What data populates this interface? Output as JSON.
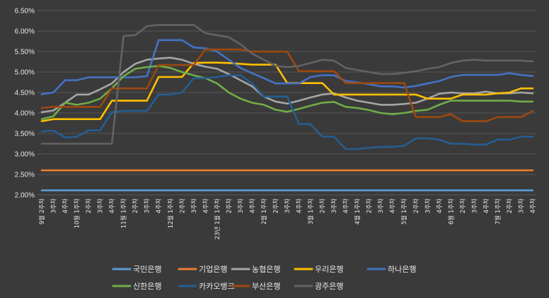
{
  "chart_data": {
    "type": "line",
    "title": "",
    "xlabel": "",
    "ylabel": "",
    "ylim": [
      2.0,
      6.5
    ],
    "y_ticks": [
      "2.00%",
      "2.50%",
      "3.00%",
      "3.50%",
      "4.00%",
      "4.50%",
      "5.00%",
      "5.50%",
      "6.00%",
      "6.50%"
    ],
    "grid": "horizontal",
    "legend_position": "bottom",
    "background": "#3a3a3a",
    "x": [
      "9월 2주차",
      "3주차",
      "4주차",
      "10월 1주차",
      "2주차",
      "3주차",
      "4주차",
      "11월 1주차",
      "2주차",
      "3주차",
      "4주차",
      "12월 1주차",
      "2주차",
      "3주차",
      "4주차",
      "23년 1월 1주차",
      "2주차",
      "3주차",
      "4주차",
      "2월 1주차",
      "2주차",
      "3주차",
      "4주차",
      "3월 1주차",
      "2주차",
      "3주차",
      "4주차",
      "4월 1주차",
      "2주차",
      "3주차",
      "4주차",
      "5월 1주차",
      "2주차",
      "3주차",
      "4주차",
      "6월 1주차",
      "2주차",
      "3주차",
      "4주차",
      "7월 1주차",
      "2주차",
      "3주차",
      "4주차"
    ],
    "series": [
      {
        "name": "국민은행",
        "color": "#5b9bd5",
        "values": [
          2.11,
          2.11,
          2.11,
          2.11,
          2.11,
          2.11,
          2.11,
          2.11,
          2.11,
          2.11,
          2.11,
          2.11,
          2.11,
          2.11,
          2.11,
          2.11,
          2.11,
          2.11,
          2.11,
          2.11,
          2.11,
          2.11,
          2.11,
          2.11,
          2.11,
          2.11,
          2.11,
          2.11,
          2.11,
          2.11,
          2.11,
          2.11,
          2.11,
          2.11,
          2.11,
          2.11,
          2.11,
          2.11,
          2.11,
          2.11,
          2.11,
          2.11,
          2.11
        ]
      },
      {
        "name": "기업은행",
        "color": "#ed7d31",
        "values": [
          2.6,
          2.6,
          2.6,
          2.6,
          2.6,
          2.6,
          2.6,
          2.6,
          2.6,
          2.6,
          2.6,
          2.6,
          2.6,
          2.6,
          2.6,
          2.6,
          2.6,
          2.6,
          2.6,
          2.6,
          2.6,
          2.6,
          2.6,
          2.6,
          2.6,
          2.6,
          2.6,
          2.6,
          2.6,
          2.6,
          2.6,
          2.6,
          2.6,
          2.6,
          2.6,
          2.6,
          2.6,
          2.6,
          2.6,
          2.6,
          2.6,
          2.6,
          2.6
        ]
      },
      {
        "name": "농협은행",
        "color": "#a5a5a5",
        "values": [
          4.02,
          4.06,
          4.25,
          4.45,
          4.45,
          4.58,
          4.72,
          5.0,
          5.2,
          5.3,
          5.33,
          5.35,
          5.3,
          5.2,
          5.13,
          5.08,
          4.95,
          4.8,
          4.65,
          4.4,
          4.28,
          4.23,
          4.3,
          4.38,
          4.45,
          4.48,
          4.38,
          4.3,
          4.25,
          4.2,
          4.2,
          4.22,
          4.25,
          4.35,
          4.47,
          4.5,
          4.48,
          4.48,
          4.52,
          4.48,
          4.48,
          4.5,
          4.48
        ]
      },
      {
        "name": "우리은행",
        "color": "#ffc000",
        "values": [
          3.8,
          3.85,
          3.85,
          3.85,
          3.85,
          3.85,
          4.3,
          4.3,
          4.3,
          4.3,
          4.88,
          4.88,
          4.88,
          5.22,
          5.23,
          5.23,
          5.22,
          5.2,
          5.18,
          5.18,
          5.18,
          4.73,
          4.73,
          4.73,
          4.73,
          4.45,
          4.45,
          4.45,
          4.45,
          4.45,
          4.45,
          4.45,
          4.45,
          4.35,
          4.35,
          4.35,
          4.45,
          4.45,
          4.45,
          4.48,
          4.5,
          4.6,
          4.6
        ]
      },
      {
        "name": "하나은행",
        "color": "#4472c4",
        "values": [
          4.46,
          4.5,
          4.8,
          4.8,
          4.87,
          4.87,
          4.87,
          4.87,
          4.87,
          4.9,
          5.78,
          5.78,
          5.78,
          5.6,
          5.58,
          5.5,
          5.3,
          5.1,
          4.97,
          4.85,
          4.72,
          4.72,
          4.72,
          4.88,
          4.92,
          4.92,
          4.78,
          4.75,
          4.7,
          4.65,
          4.65,
          4.62,
          4.66,
          4.72,
          4.78,
          4.88,
          4.93,
          4.93,
          4.93,
          4.93,
          4.97,
          4.93,
          4.9
        ]
      },
      {
        "name": "신한은행",
        "color": "#70ad47",
        "values": [
          3.85,
          3.92,
          4.25,
          4.2,
          4.25,
          4.35,
          4.6,
          4.9,
          5.08,
          5.12,
          5.15,
          5.1,
          5.0,
          4.92,
          4.85,
          4.72,
          4.5,
          4.35,
          4.25,
          4.2,
          4.08,
          4.03,
          4.1,
          4.18,
          4.25,
          4.27,
          4.15,
          4.12,
          4.07,
          4.0,
          3.97,
          4.0,
          4.05,
          4.08,
          4.2,
          4.3,
          4.3,
          4.3,
          4.3,
          4.3,
          4.3,
          4.28,
          4.28
        ]
      },
      {
        "name": "카카오뱅크",
        "color": "#255e91",
        "values": [
          3.55,
          3.57,
          3.4,
          3.42,
          3.58,
          3.58,
          4.02,
          4.05,
          4.05,
          4.05,
          4.45,
          4.45,
          4.5,
          4.85,
          4.85,
          4.88,
          4.92,
          4.92,
          4.72,
          4.4,
          4.4,
          4.4,
          3.73,
          3.73,
          3.42,
          3.42,
          3.12,
          3.12,
          3.15,
          3.17,
          3.17,
          3.2,
          3.38,
          3.38,
          3.35,
          3.25,
          3.25,
          3.23,
          3.23,
          3.35,
          3.35,
          3.42,
          3.42
        ]
      },
      {
        "name": "부산은행",
        "color": "#9e480e",
        "values": [
          4.12,
          4.15,
          4.15,
          4.15,
          4.15,
          4.15,
          4.6,
          4.6,
          4.6,
          4.6,
          5.17,
          5.17,
          5.17,
          5.17,
          5.55,
          5.55,
          5.55,
          5.55,
          5.5,
          5.5,
          5.5,
          5.5,
          5.02,
          5.02,
          5.02,
          5.02,
          4.73,
          4.73,
          4.73,
          4.73,
          4.73,
          4.73,
          3.9,
          3.9,
          3.9,
          3.97,
          3.8,
          3.8,
          3.8,
          3.9,
          3.9,
          3.9,
          4.05
        ]
      },
      {
        "name": "광주은행",
        "color": "#636363",
        "values": [
          3.25,
          3.25,
          3.25,
          3.25,
          3.25,
          3.25,
          3.25,
          5.88,
          5.9,
          6.12,
          6.15,
          6.15,
          6.15,
          6.15,
          5.95,
          5.9,
          5.85,
          5.68,
          5.45,
          5.3,
          5.15,
          5.12,
          5.15,
          5.22,
          5.3,
          5.28,
          5.1,
          5.05,
          5.0,
          4.95,
          4.95,
          4.98,
          5.02,
          5.08,
          5.12,
          5.22,
          5.28,
          5.3,
          5.28,
          5.28,
          5.28,
          5.28,
          5.26
        ]
      }
    ]
  }
}
